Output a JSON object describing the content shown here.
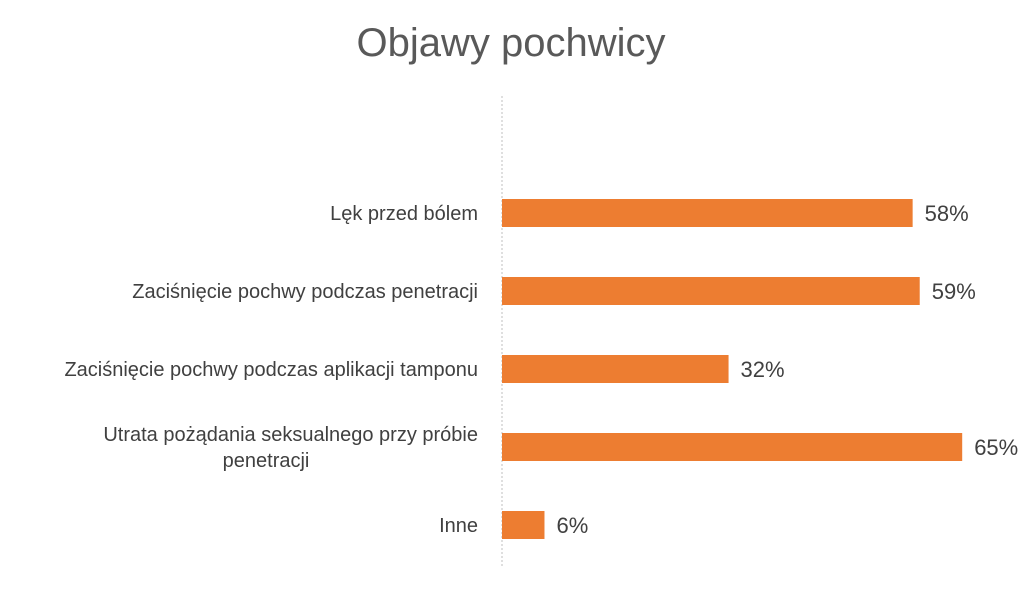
{
  "chart_data": {
    "type": "bar",
    "orientation": "horizontal",
    "title": "Objawy pochwicy",
    "categories": [
      "Lęk przed bólem",
      "Zaciśnięcie pochwy podczas penetracji",
      "Zaciśnięcie pochwy podczas aplikacji tamponu",
      "Utrata pożądania seksualnego przy próbie penetracji",
      "Inne"
    ],
    "values": [
      58,
      59,
      32,
      65,
      6
    ],
    "data_labels": [
      "58%",
      "59%",
      "32%",
      "65%",
      "6%"
    ],
    "unit": "%",
    "xlim": [
      0,
      65
    ],
    "grid": false,
    "legend": "none",
    "bar_color": "#ED7D31",
    "axis_color": "#BFBFBF",
    "text_color": "#404040"
  }
}
